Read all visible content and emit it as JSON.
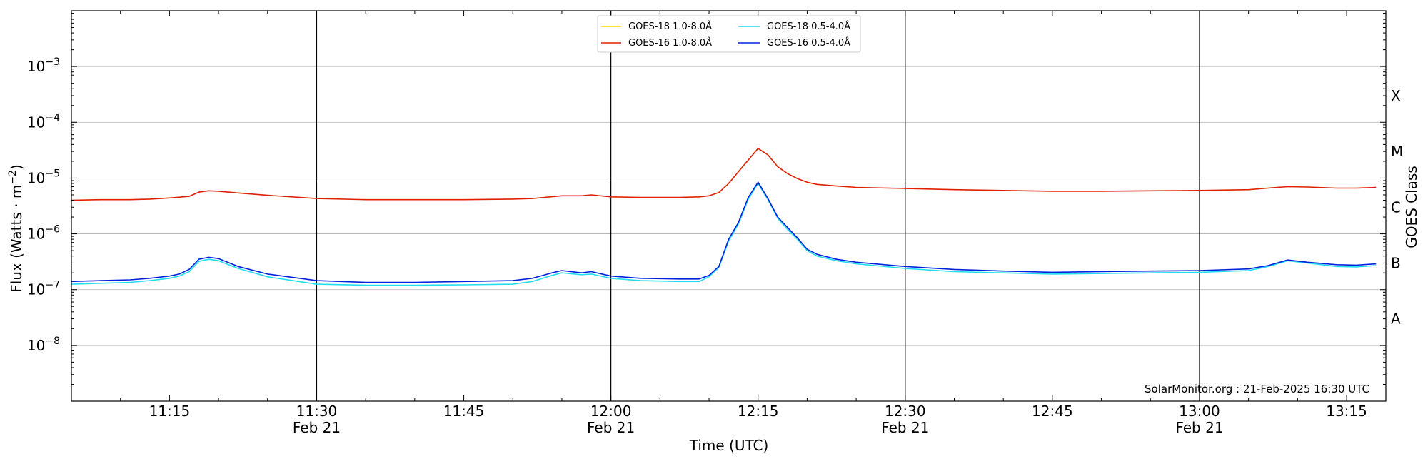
{
  "chart_data": {
    "type": "line",
    "xlabel": "Time (UTC)",
    "ylabel": "Flux (Watts · m",
    "ylabel_sup": "−2",
    "ylabel_close": ")",
    "ylabel_right": "GOES Class",
    "y_scale": "log",
    "ylim": [
      1e-09,
      0.01
    ],
    "xlim": [
      "2025-02-21 11:05",
      "2025-02-21 13:19"
    ],
    "grid": "horizontal at decades; vertical lines at 11:30, 12:00, 12:30, 13:00",
    "legend_location": "upper center",
    "credit": "SolarMonitor.org : 21-Feb-2025 16:30 UTC",
    "y_ticks": [
      {
        "value": 1e-08,
        "base": "10",
        "exp": "−8"
      },
      {
        "value": 1e-07,
        "base": "10",
        "exp": "−7"
      },
      {
        "value": 1e-06,
        "base": "10",
        "exp": "−6"
      },
      {
        "value": 1e-05,
        "base": "10",
        "exp": "−5"
      },
      {
        "value": 0.0001,
        "base": "10",
        "exp": "−4"
      },
      {
        "value": 0.001,
        "base": "10",
        "exp": "−3"
      }
    ],
    "x_ticks": [
      {
        "time": "11:15",
        "label": "11:15",
        "date": ""
      },
      {
        "time": "11:30",
        "label": "11:30",
        "date": "Feb 21"
      },
      {
        "time": "11:45",
        "label": "11:45",
        "date": ""
      },
      {
        "time": "12:00",
        "label": "12:00",
        "date": "Feb 21"
      },
      {
        "time": "12:15",
        "label": "12:15",
        "date": ""
      },
      {
        "time": "12:30",
        "label": "12:30",
        "date": "Feb 21"
      },
      {
        "time": "12:45",
        "label": "12:45",
        "date": ""
      },
      {
        "time": "13:00",
        "label": "13:00",
        "date": "Feb 21"
      },
      {
        "time": "13:15",
        "label": "13:15",
        "date": ""
      }
    ],
    "goes_classes": [
      {
        "label": "A",
        "value": 3e-08
      },
      {
        "label": "B",
        "value": 3e-07
      },
      {
        "label": "C",
        "value": 3e-06
      },
      {
        "label": "M",
        "value": 3e-05
      },
      {
        "label": "X",
        "value": 0.0003
      }
    ],
    "series": [
      {
        "name": "GOES-18 1.0-8.0Å",
        "color": "#FFD700",
        "points": [],
        "note": ""
      },
      {
        "name": "GOES-16 1.0-8.0Å",
        "color": "#E02000",
        "points": [
          [
            "11:05",
            4e-06
          ],
          [
            "11:08",
            4.1e-06
          ],
          [
            "11:11",
            4.1e-06
          ],
          [
            "11:13",
            4.2e-06
          ],
          [
            "11:15",
            4.4e-06
          ],
          [
            "11:17",
            4.7e-06
          ],
          [
            "11:18",
            5.6e-06
          ],
          [
            "11:19",
            5.9e-06
          ],
          [
            "11:20",
            5.8e-06
          ],
          [
            "11:22",
            5.4e-06
          ],
          [
            "11:25",
            4.9e-06
          ],
          [
            "11:30",
            4.3e-06
          ],
          [
            "11:35",
            4.1e-06
          ],
          [
            "11:40",
            4.1e-06
          ],
          [
            "11:45",
            4.1e-06
          ],
          [
            "11:50",
            4.2e-06
          ],
          [
            "11:52",
            4.3e-06
          ],
          [
            "11:55",
            4.8e-06
          ],
          [
            "11:57",
            4.8e-06
          ],
          [
            "11:58",
            5e-06
          ],
          [
            "12:00",
            4.6e-06
          ],
          [
            "12:03",
            4.5e-06
          ],
          [
            "12:07",
            4.5e-06
          ],
          [
            "12:09",
            4.6e-06
          ],
          [
            "12:10",
            4.8e-06
          ],
          [
            "12:11",
            5.5e-06
          ],
          [
            "12:12",
            8e-06
          ],
          [
            "12:13",
            1.3e-05
          ],
          [
            "12:14",
            2.1e-05
          ],
          [
            "12:15",
            3.4e-05
          ],
          [
            "12:16",
            2.6e-05
          ],
          [
            "12:17",
            1.6e-05
          ],
          [
            "12:18",
            1.2e-05
          ],
          [
            "12:19",
            9.8e-06
          ],
          [
            "12:20",
            8.4e-06
          ],
          [
            "12:21",
            7.7e-06
          ],
          [
            "12:23",
            7.2e-06
          ],
          [
            "12:25",
            6.8e-06
          ],
          [
            "12:30",
            6.5e-06
          ],
          [
            "12:35",
            6.2e-06
          ],
          [
            "12:40",
            6e-06
          ],
          [
            "12:45",
            5.8e-06
          ],
          [
            "12:50",
            5.8e-06
          ],
          [
            "12:55",
            5.9e-06
          ],
          [
            "13:00",
            6e-06
          ],
          [
            "13:05",
            6.2e-06
          ],
          [
            "13:07",
            6.6e-06
          ],
          [
            "13:09",
            7e-06
          ],
          [
            "13:11",
            6.9e-06
          ],
          [
            "13:14",
            6.6e-06
          ],
          [
            "13:16",
            6.6e-06
          ],
          [
            "13:18",
            6.8e-06
          ]
        ]
      },
      {
        "name": "GOES-18 0.5-4.0Å",
        "color": "#22DDEE",
        "points": [
          [
            "11:05",
            1.25e-07
          ],
          [
            "11:08",
            1.3e-07
          ],
          [
            "11:11",
            1.35e-07
          ],
          [
            "11:13",
            1.45e-07
          ],
          [
            "11:15",
            1.6e-07
          ],
          [
            "11:16",
            1.75e-07
          ],
          [
            "11:17",
            2.1e-07
          ],
          [
            "11:18",
            3.2e-07
          ],
          [
            "11:19",
            3.5e-07
          ],
          [
            "11:20",
            3.3e-07
          ],
          [
            "11:22",
            2.4e-07
          ],
          [
            "11:25",
            1.7e-07
          ],
          [
            "11:30",
            1.25e-07
          ],
          [
            "11:35",
            1.2e-07
          ],
          [
            "11:40",
            1.2e-07
          ],
          [
            "11:45",
            1.22e-07
          ],
          [
            "11:50",
            1.25e-07
          ],
          [
            "11:52",
            1.4e-07
          ],
          [
            "11:54",
            1.8e-07
          ],
          [
            "11:55",
            2e-07
          ],
          [
            "11:57",
            1.85e-07
          ],
          [
            "11:58",
            1.9e-07
          ],
          [
            "12:00",
            1.6e-07
          ],
          [
            "12:03",
            1.45e-07
          ],
          [
            "12:07",
            1.4e-07
          ],
          [
            "12:09",
            1.4e-07
          ],
          [
            "12:10",
            1.7e-07
          ],
          [
            "12:11",
            2.5e-07
          ],
          [
            "12:12",
            7.5e-07
          ],
          [
            "12:13",
            1.5e-06
          ],
          [
            "12:14",
            4.2e-06
          ],
          [
            "12:15",
            8e-06
          ],
          [
            "12:16",
            4.1e-06
          ],
          [
            "12:17",
            1.9e-06
          ],
          [
            "12:18",
            1.2e-06
          ],
          [
            "12:19",
            8e-07
          ],
          [
            "12:20",
            5e-07
          ],
          [
            "12:21",
            4e-07
          ],
          [
            "12:23",
            3.3e-07
          ],
          [
            "12:25",
            2.9e-07
          ],
          [
            "12:30",
            2.4e-07
          ],
          [
            "12:35",
            2.1e-07
          ],
          [
            "12:40",
            2e-07
          ],
          [
            "12:45",
            1.9e-07
          ],
          [
            "12:50",
            1.95e-07
          ],
          [
            "12:55",
            2e-07
          ],
          [
            "13:00",
            2.05e-07
          ],
          [
            "13:05",
            2.2e-07
          ],
          [
            "13:07",
            2.6e-07
          ],
          [
            "13:09",
            3.3e-07
          ],
          [
            "13:11",
            3e-07
          ],
          [
            "13:14",
            2.6e-07
          ],
          [
            "13:16",
            2.55e-07
          ],
          [
            "13:18",
            2.7e-07
          ]
        ]
      },
      {
        "name": "GOES-16 0.5-4.0Å",
        "color": "#0022DD",
        "points": [
          [
            "11:05",
            1.4e-07
          ],
          [
            "11:08",
            1.45e-07
          ],
          [
            "11:11",
            1.5e-07
          ],
          [
            "11:13",
            1.6e-07
          ],
          [
            "11:15",
            1.75e-07
          ],
          [
            "11:16",
            1.9e-07
          ],
          [
            "11:17",
            2.3e-07
          ],
          [
            "11:18",
            3.5e-07
          ],
          [
            "11:19",
            3.8e-07
          ],
          [
            "11:20",
            3.6e-07
          ],
          [
            "11:22",
            2.6e-07
          ],
          [
            "11:25",
            1.9e-07
          ],
          [
            "11:30",
            1.45e-07
          ],
          [
            "11:35",
            1.35e-07
          ],
          [
            "11:40",
            1.35e-07
          ],
          [
            "11:45",
            1.4e-07
          ],
          [
            "11:50",
            1.45e-07
          ],
          [
            "11:52",
            1.6e-07
          ],
          [
            "11:54",
            2e-07
          ],
          [
            "11:55",
            2.2e-07
          ],
          [
            "11:57",
            2e-07
          ],
          [
            "11:58",
            2.1e-07
          ],
          [
            "12:00",
            1.75e-07
          ],
          [
            "12:03",
            1.6e-07
          ],
          [
            "12:07",
            1.55e-07
          ],
          [
            "12:09",
            1.55e-07
          ],
          [
            "12:10",
            1.8e-07
          ],
          [
            "12:11",
            2.6e-07
          ],
          [
            "12:12",
            8e-07
          ],
          [
            "12:13",
            1.6e-06
          ],
          [
            "12:14",
            4.5e-06
          ],
          [
            "12:15",
            8.4e-06
          ],
          [
            "12:16",
            4.3e-06
          ],
          [
            "12:17",
            2e-06
          ],
          [
            "12:18",
            1.3e-06
          ],
          [
            "12:19",
            8.5e-07
          ],
          [
            "12:20",
            5.3e-07
          ],
          [
            "12:21",
            4.3e-07
          ],
          [
            "12:23",
            3.5e-07
          ],
          [
            "12:25",
            3.1e-07
          ],
          [
            "12:30",
            2.6e-07
          ],
          [
            "12:35",
            2.3e-07
          ],
          [
            "12:40",
            2.15e-07
          ],
          [
            "12:45",
            2.05e-07
          ],
          [
            "12:50",
            2.1e-07
          ],
          [
            "12:55",
            2.15e-07
          ],
          [
            "13:00",
            2.2e-07
          ],
          [
            "13:05",
            2.35e-07
          ],
          [
            "13:07",
            2.7e-07
          ],
          [
            "13:09",
            3.4e-07
          ],
          [
            "13:11",
            3.1e-07
          ],
          [
            "13:14",
            2.8e-07
          ],
          [
            "13:16",
            2.75e-07
          ],
          [
            "13:18",
            2.9e-07
          ]
        ]
      }
    ]
  }
}
